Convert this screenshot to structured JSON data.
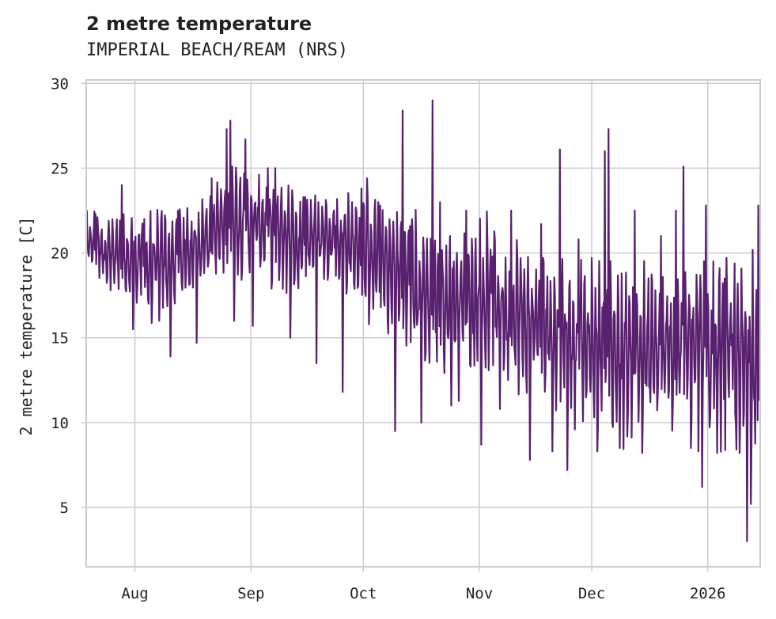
{
  "chart_data": {
    "type": "line",
    "title": "2 metre temperature",
    "subtitle": "IMPERIAL BEACH/REAM (NRS)",
    "xlabel": "",
    "ylabel": "2 metre temperature [C]",
    "ylim": [
      1.5,
      30.2
    ],
    "yticks": [
      5,
      10,
      15,
      20,
      25,
      30
    ],
    "xlim_days": [
      0,
      180
    ],
    "xticks": [
      {
        "label": "Aug",
        "day": 13
      },
      {
        "label": "Sep",
        "day": 44
      },
      {
        "label": "Oct",
        "day": 74
      },
      {
        "label": "Nov",
        "day": 105
      },
      {
        "label": "Dec",
        "day": 135
      },
      {
        "label": "2026",
        "day": 166
      }
    ],
    "grid": true,
    "line_color": "#58206e",
    "series": [
      {
        "name": "2 metre temperature",
        "x": [
          0,
          3,
          6,
          9,
          12,
          15,
          18,
          21,
          24,
          27,
          30,
          33,
          36,
          39,
          42,
          45,
          48,
          51,
          54,
          57,
          60,
          63,
          66,
          69,
          72,
          75,
          78,
          81,
          84,
          87,
          90,
          93,
          96,
          99,
          102,
          105,
          108,
          111,
          114,
          117,
          120,
          123,
          126,
          129,
          132,
          135,
          138,
          141,
          144,
          147,
          150,
          153,
          156,
          159,
          162,
          165,
          168,
          171,
          174,
          177,
          180
        ],
        "mid": [
          20.5,
          20.5,
          20.0,
          19.5,
          19.5,
          19.5,
          19.0,
          19.5,
          19.5,
          20.0,
          20.5,
          21.0,
          21.5,
          22.0,
          22.0,
          21.5,
          21.5,
          21.0,
          21.0,
          20.5,
          21.0,
          21.0,
          21.0,
          20.5,
          20.5,
          20.0,
          19.5,
          19.0,
          18.5,
          18.0,
          17.5,
          17.5,
          17.0,
          17.0,
          17.5,
          17.5,
          17.0,
          16.5,
          16.5,
          16.0,
          16.0,
          15.5,
          15.0,
          15.0,
          14.5,
          14.5,
          14.5,
          14.0,
          14.0,
          14.0,
          14.0,
          14.0,
          14.0,
          14.5,
          14.5,
          14.5,
          14.0,
          14.0,
          13.5,
          13.0,
          13.0
        ],
        "amp": [
          1.8,
          1.8,
          2.0,
          2.5,
          2.7,
          2.7,
          3.0,
          2.8,
          2.8,
          2.5,
          2.3,
          2.3,
          2.5,
          2.6,
          2.8,
          2.7,
          2.5,
          2.5,
          2.6,
          2.6,
          2.4,
          2.2,
          2.3,
          2.5,
          2.8,
          3.3,
          3.4,
          3.6,
          3.8,
          4.0,
          4.0,
          4.0,
          4.2,
          4.4,
          4.3,
          4.2,
          4.0,
          3.8,
          3.6,
          3.8,
          3.8,
          4.0,
          4.2,
          4.2,
          4.4,
          4.5,
          4.5,
          4.6,
          4.5,
          4.3,
          4.2,
          4.0,
          3.9,
          3.8,
          3.8,
          4.2,
          4.6,
          5.0,
          5.6,
          6.0,
          6.0
        ],
        "extremes": [
          [
            2,
            22.3
          ],
          [
            6,
            17.8
          ],
          [
            9,
            24.0
          ],
          [
            12,
            15.5
          ],
          [
            15,
            22.0
          ],
          [
            22,
            13.9
          ],
          [
            24,
            22.5
          ],
          [
            29,
            14.7
          ],
          [
            33,
            24.4
          ],
          [
            37,
            27.3
          ],
          [
            38,
            27.8
          ],
          [
            39,
            16.0
          ],
          [
            42,
            26.7
          ],
          [
            44,
            15.7
          ],
          [
            48,
            25.0
          ],
          [
            50,
            25.0
          ],
          [
            54,
            15.0
          ],
          [
            58,
            23.3
          ],
          [
            61,
            13.5
          ],
          [
            66,
            21.6
          ],
          [
            68,
            11.8
          ],
          [
            73,
            23.8
          ],
          [
            78,
            22.8
          ],
          [
            82,
            9.5
          ],
          [
            84,
            28.4
          ],
          [
            86,
            21.6
          ],
          [
            89,
            10.0
          ],
          [
            92,
            29.0
          ],
          [
            94,
            23.0
          ],
          [
            97,
            11.0
          ],
          [
            101,
            22.5
          ],
          [
            105,
            8.7
          ],
          [
            108,
            19.8
          ],
          [
            110,
            10.8
          ],
          [
            113,
            22.5
          ],
          [
            118,
            7.8
          ],
          [
            121,
            21.7
          ],
          [
            124,
            8.3
          ],
          [
            126,
            26.1
          ],
          [
            128,
            7.2
          ],
          [
            131,
            20.8
          ],
          [
            136,
            8.3
          ],
          [
            138,
            26.0
          ],
          [
            139,
            27.3
          ],
          [
            142,
            8.5
          ],
          [
            146,
            22.5
          ],
          [
            148,
            8.2
          ],
          [
            153,
            21.0
          ],
          [
            157,
            22.5
          ],
          [
            159,
            25.1
          ],
          [
            161,
            8.5
          ],
          [
            163,
            8.3
          ],
          [
            164,
            6.2
          ],
          [
            165,
            22.8
          ],
          [
            167,
            19.5
          ],
          [
            170,
            18.5
          ],
          [
            172,
            15.2
          ],
          [
            174,
            8.2
          ],
          [
            176,
            3.0
          ],
          [
            177,
            5.2
          ],
          [
            179,
            22.8
          ],
          [
            180,
            9.5
          ]
        ]
      }
    ]
  }
}
